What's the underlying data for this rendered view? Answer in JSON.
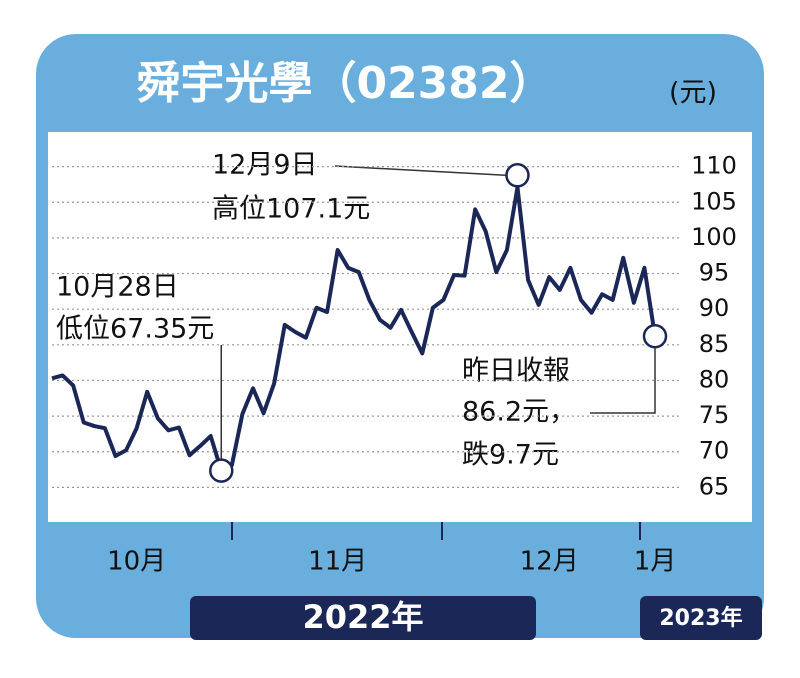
{
  "chart_data": {
    "type": "line",
    "title": "舜宇光學（02382）",
    "y_unit": "(元)",
    "categories": [
      null,
      null,
      null,
      null,
      null,
      null,
      null,
      null,
      "10月",
      null,
      null,
      null,
      null,
      null,
      null,
      null,
      null,
      null,
      null,
      null,
      null,
      null,
      null,
      null,
      null,
      null,
      null,
      "11月",
      null,
      null,
      null,
      null,
      null,
      null,
      null,
      null,
      null,
      null,
      null,
      null,
      null,
      null,
      null,
      null,
      null,
      null,
      null,
      "12月",
      null,
      null,
      null,
      null,
      null,
      null,
      null,
      null,
      null,
      "1月"
    ],
    "series": [
      {
        "color": "#1b2757",
        "values": [
          80.3,
          80.7,
          79.3,
          74.1,
          73.6,
          73.3,
          69.4,
          70.2,
          73.3,
          78.4,
          74.7,
          73.0,
          73.4,
          69.5,
          70.8,
          72.2,
          67.35,
          68.1,
          75.3,
          78.9,
          75.4,
          79.6,
          87.8,
          86.8,
          86.0,
          90.2,
          89.6,
          98.3,
          95.8,
          95.2,
          91.3,
          88.5,
          87.4,
          89.9,
          86.8,
          83.8,
          90.2,
          91.3,
          94.8,
          94.7,
          104.0,
          100.9,
          95.2,
          98.3,
          107.1,
          94.1,
          90.6,
          94.5,
          92.7,
          95.8,
          91.3,
          89.5,
          92.1,
          91.3,
          97.2,
          90.9,
          95.8,
          86.2
        ]
      }
    ],
    "ylim": [
      60,
      115
    ],
    "yticks": [
      65,
      70,
      75,
      80,
      85,
      90,
      95,
      100,
      105,
      110
    ],
    "grid": true,
    "annotations": {
      "high": [
        "12月9日",
        "高位107.1元"
      ],
      "low": [
        "10月28日",
        "低位67.35元"
      ],
      "last": [
        "昨日收報",
        "86.2元，",
        "跌9.7元"
      ]
    },
    "years": [
      "2022年",
      "2023年"
    ]
  }
}
